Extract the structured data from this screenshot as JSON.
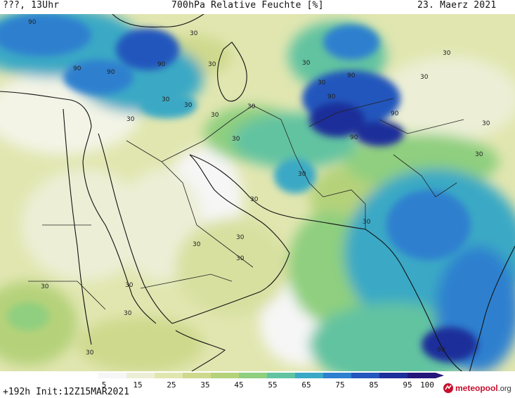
{
  "header": {
    "left_text": "???, 13Uhr",
    "title": "700hPa Relative Feuchte [%]",
    "date": "23. Maerz 2021"
  },
  "footer": {
    "run_info": "+192h Init:12Z15MAR2021",
    "logo_text": "meteopool",
    "logo_suffix": ".org"
  },
  "colorbar": {
    "labels": [
      "5",
      "15",
      "25",
      "35",
      "45",
      "55",
      "65",
      "75",
      "85",
      "95",
      "100"
    ],
    "colors": [
      "#f6f6f6",
      "#ecefd6",
      "#e1e6b0",
      "#cfd98d",
      "#b5d27a",
      "#8fcf7f",
      "#62c3a0",
      "#3aa9c5",
      "#2d80cf",
      "#2457bd",
      "#1d2f9a",
      "#24177a"
    ]
  },
  "contour_labels": {
    "thirty": "30",
    "ninety": "90"
  }
}
